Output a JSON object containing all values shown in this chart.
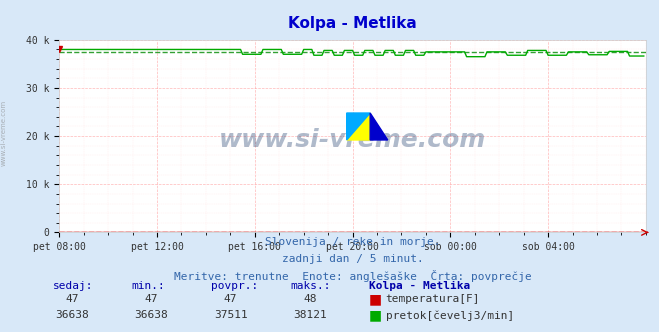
{
  "title": "Kolpa - Metlika",
  "title_color": "#0000cc",
  "bg_color": "#d8e8f8",
  "plot_bg_color": "#ffffff",
  "grid_color_major": "#ff9999",
  "grid_color_minor": "#ffdddd",
  "xlabel_ticks": [
    "pet 08:00",
    "pet 12:00",
    "pet 16:00",
    "pet 20:00",
    "sob 00:00",
    "sob 04:00"
  ],
  "xlabel_tick_positions": [
    0,
    48,
    96,
    144,
    192,
    240
  ],
  "total_points": 288,
  "ylim": [
    0,
    40000
  ],
  "yticks": [
    0,
    10000,
    20000,
    30000,
    40000
  ],
  "ytick_labels": [
    "0",
    "10 k",
    "20 k",
    "30 k",
    "40 k"
  ],
  "temp_color": "#cc0000",
  "temp_avg_color": "#cc0000",
  "flow_color": "#00aa00",
  "flow_avg_color": "#008800",
  "watermark": "www.si-vreme.com",
  "watermark_color": "#1a3a6a",
  "sub_text1": "Slovenija / reke in morje.",
  "sub_text2": "zadnji dan / 5 minut.",
  "sub_text3": "Meritve: trenutne  Enote: anglešaške  Črta: povprečje",
  "sub_text_color": "#3366aa",
  "table_header": [
    "sedaj:",
    "min.:",
    "povpr.:",
    "maks.:",
    "Kolpa - Metlika"
  ],
  "table_row1": [
    "47",
    "47",
    "47",
    "48"
  ],
  "table_row2": [
    "36638",
    "36638",
    "37511",
    "38121"
  ],
  "table_color": "#0000aa",
  "temp_sedaj": 47,
  "temp_min": 47,
  "temp_avg": 47,
  "temp_max": 48,
  "flow_sedaj": 36638,
  "flow_min": 36638,
  "flow_avg": 37511,
  "flow_max": 38121,
  "flow_avg_line": 37511,
  "temp_avg_line": 47
}
